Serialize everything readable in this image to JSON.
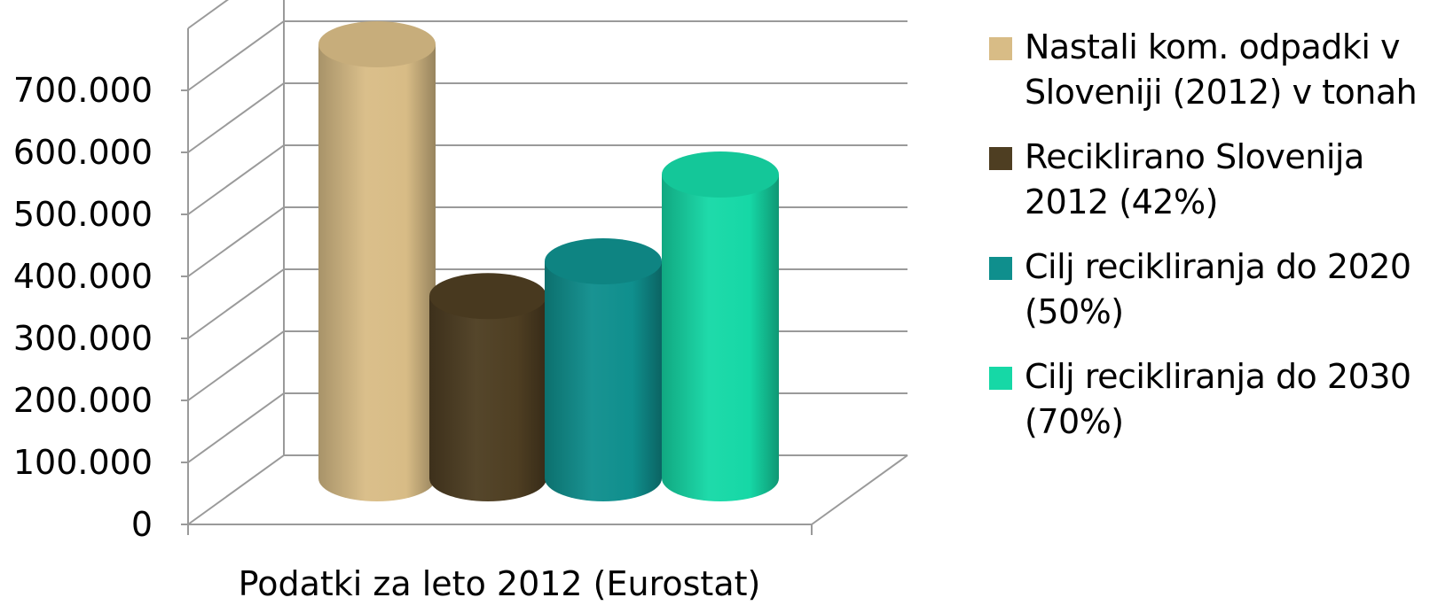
{
  "chart_data": {
    "type": "bar",
    "style": "3d-cylinder",
    "categories": [
      "Podatki za leto 2012 (Eurostat)"
    ],
    "series": [
      {
        "name": "Nastali kom. odpadki v Slovenjii (2012) v tonah",
        "label": "Nastali kom. odpadki v\nSloveniji (2012) v tonah",
        "values": [
          700000
        ],
        "color": "#d8bc86",
        "icon": "legend-square"
      },
      {
        "name": "Reciklirano Slovenija 2012 (42%)",
        "label": "Reciklirano Slovenija\n2012 (42%)",
        "values": [
          294000
        ],
        "color": "#4e3e22",
        "icon": "legend-square"
      },
      {
        "name": "Cilj recikliranja do 2020 (50%)",
        "label": "Cilj recikliranja do 2020\n(50%)",
        "values": [
          350000
        ],
        "color": "#0f8f8d",
        "icon": "legend-square"
      },
      {
        "name": "Cilj recikliranja do 2030 (70%)",
        "label": "Cilj recikliranja do 2030\n(70%)",
        "values": [
          490000
        ],
        "color": "#16d8a6",
        "icon": "legend-square"
      }
    ],
    "yticks": [
      "0",
      "100.000",
      "200.000",
      "300.000",
      "400.000",
      "500.000",
      "600.000",
      "700.000"
    ],
    "ylim": [
      0,
      800000
    ],
    "grid": true,
    "legend_position": "right",
    "gridline_color": "#9a9a9a"
  }
}
